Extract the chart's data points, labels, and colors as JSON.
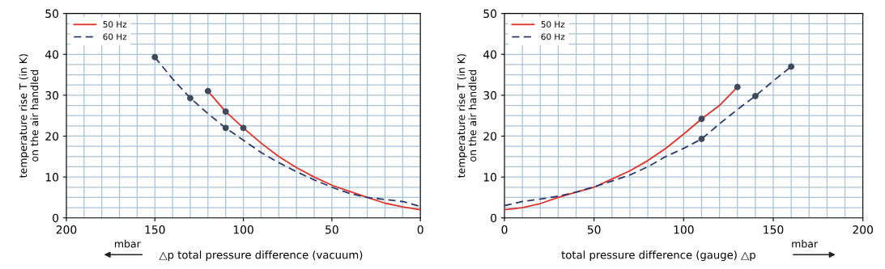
{
  "chart_data": [
    {
      "type": "line",
      "xlabel": "△p total pressure difference (vacuum)",
      "ylabel": "temperature rise T (in K)\non the air handled",
      "annotations": [
        "mbar"
      ],
      "xlim": [
        200,
        0
      ],
      "ylim": [
        0,
        50
      ],
      "xticks": [
        200,
        150,
        100,
        50,
        0
      ],
      "yticks": [
        0,
        10,
        20,
        30,
        40,
        50
      ],
      "grid": true,
      "legend": "top left",
      "series": [
        {
          "name": "50 Hz",
          "color": "#e0312a",
          "line_style": "solid",
          "x": [
            120,
            110,
            100,
            90,
            80,
            70,
            60,
            50,
            40,
            30,
            20,
            10,
            0
          ],
          "values": [
            31,
            26,
            22,
            18.3,
            15,
            12.3,
            10,
            8,
            6.5,
            5,
            3.6,
            2.7,
            2
          ]
        },
        {
          "name": "60 Hz",
          "color": "#2b3a6b",
          "line_style": "dashed",
          "x": [
            150,
            140,
            130,
            120,
            110,
            100,
            90,
            80,
            70,
            60,
            50,
            40,
            30,
            20,
            10,
            0
          ],
          "values": [
            39.3,
            34,
            29.3,
            25.5,
            22,
            19,
            16,
            13.5,
            11.3,
            9.3,
            7.5,
            6,
            5,
            4.5,
            4,
            2.8
          ]
        },
        {
          "type": "scatter",
          "marker": "circle",
          "color": "#3f4a5a",
          "x": [
            120,
            110,
            100
          ],
          "values": [
            31,
            26,
            22
          ]
        },
        {
          "type": "scatter",
          "marker": "circle",
          "color": "#3f4a5a",
          "x": [
            150,
            130,
            110
          ],
          "values": [
            39.3,
            29.3,
            22
          ]
        }
      ]
    },
    {
      "type": "line",
      "xlabel": "total pressure difference (gauge) △p",
      "ylabel": "temperature rise T (in K)\non the air handled",
      "annotations": [
        "mbar"
      ],
      "xlim": [
        0,
        200
      ],
      "ylim": [
        0,
        50
      ],
      "xticks": [
        0,
        50,
        100,
        150,
        200
      ],
      "yticks": [
        0,
        10,
        20,
        30,
        40,
        50
      ],
      "grid": true,
      "legend": "top left",
      "series": [
        {
          "name": "50 Hz",
          "color": "#e0312a",
          "line_style": "solid",
          "x": [
            0,
            10,
            20,
            30,
            40,
            50,
            60,
            70,
            80,
            90,
            100,
            110,
            120,
            130
          ],
          "values": [
            2,
            2.5,
            3.5,
            5,
            6.3,
            7.5,
            9.5,
            11.5,
            14,
            17,
            20.5,
            24.2,
            27.5,
            32
          ]
        },
        {
          "name": "60 Hz",
          "color": "#2b3a6b",
          "line_style": "dashed",
          "x": [
            0,
            10,
            20,
            30,
            40,
            50,
            60,
            70,
            80,
            90,
            100,
            110,
            120,
            130,
            140,
            150,
            160
          ],
          "values": [
            3,
            4,
            4.6,
            5.3,
            6.3,
            7.6,
            9,
            10.5,
            12.5,
            15,
            17,
            19.3,
            23,
            26.5,
            29.8,
            33.5,
            37
          ]
        },
        {
          "type": "scatter",
          "marker": "circle",
          "color": "#3f4a5a",
          "x": [
            110,
            130
          ],
          "values": [
            24.2,
            32
          ]
        },
        {
          "type": "scatter",
          "marker": "circle",
          "color": "#3f4a5a",
          "x": [
            110,
            140,
            160
          ],
          "values": [
            19.3,
            29.8,
            37
          ]
        }
      ]
    }
  ]
}
